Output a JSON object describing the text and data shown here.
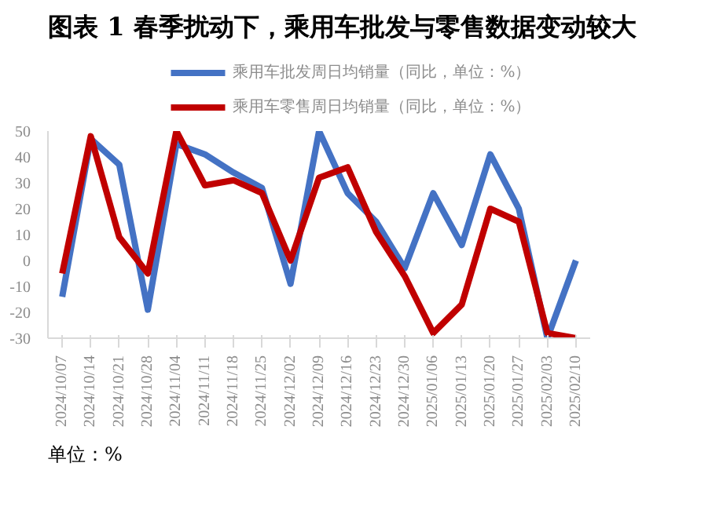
{
  "chart_data": {
    "type": "line",
    "title": "图表 1 春季扰动下，乘用车批发与零售数据变动较大",
    "categories": [
      "2024/10/07",
      "2024/10/14",
      "2024/10/21",
      "2024/10/28",
      "2024/11/04",
      "2024/11/11",
      "2024/11/18",
      "2024/11/25",
      "2024/12/02",
      "2024/12/09",
      "2024/12/16",
      "2024/12/23",
      "2024/12/30",
      "2025/01/06",
      "2025/01/13",
      "2025/01/20",
      "2025/01/27",
      "2025/02/03",
      "2025/02/10"
    ],
    "series": [
      {
        "name": "乘用车批发周日均销量（同比，单位：%）",
        "color": "#4472c4",
        "values": [
          -14,
          47,
          37,
          -19,
          45,
          41,
          34,
          28,
          -9,
          50,
          26,
          15,
          -3,
          26,
          6,
          41,
          20,
          -30,
          0
        ]
      },
      {
        "name": "乘用车零售周日均销量（同比，单位：%）",
        "color": "#c00000",
        "values": [
          -5,
          48,
          9,
          -5,
          50,
          29,
          31,
          26,
          0,
          32,
          36,
          11,
          -6,
          -28,
          -17,
          20,
          15,
          -28,
          -30
        ]
      }
    ],
    "ylim": [
      -30,
      50
    ],
    "yticks": [
      -30,
      -20,
      -10,
      0,
      10,
      20,
      30,
      40,
      50
    ],
    "grid": false,
    "legend": "top",
    "marker": "none",
    "line_style": "solid",
    "annotations": [
      "单位：%"
    ]
  }
}
